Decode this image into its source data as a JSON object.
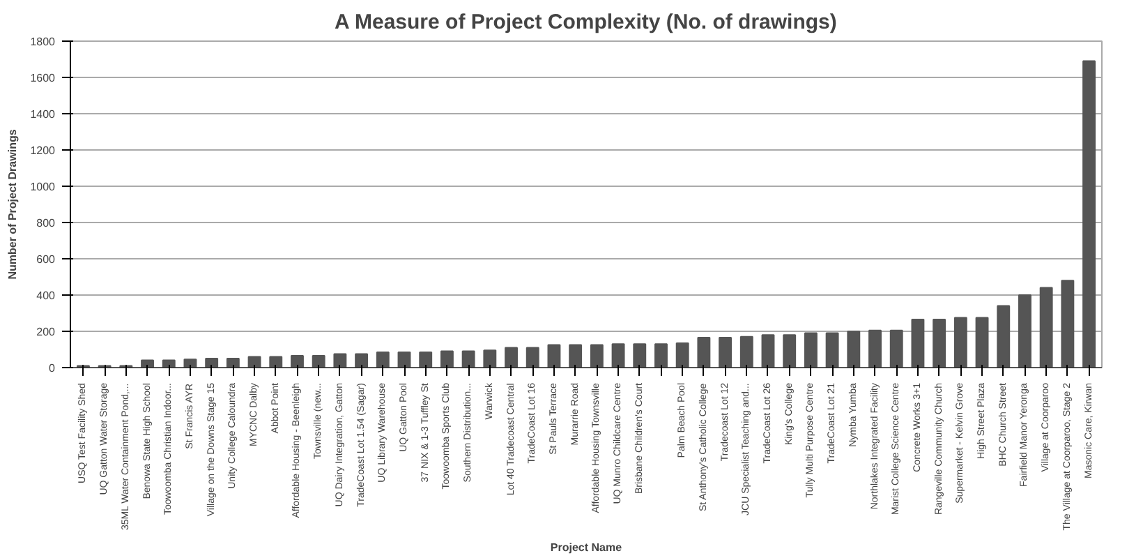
{
  "chart_data": {
    "type": "bar",
    "title": "A Measure of Project Complexity (No. of drawings)",
    "xlabel": "Project Name",
    "ylabel": "Number of Project Drawings",
    "categories": [
      "USQ Test Facility Shed",
      "UQ Gatton Water Storage",
      "35ML Water Containment Pond,...",
      "Benowa State High School",
      "Toowoomba Christian Indoor...",
      "St Francis AYR",
      "Village on the Downs Stage 15",
      "Unity College Caloundra",
      "MYCNC Dalby",
      "Abbot Point",
      "Affordable Housing - Beenleigh",
      "Townsville (new...",
      "UQ Dairy Integration, Gatton",
      "TradeCoast Lot 1.54 (Sagar)",
      "UQ Library Warehouse",
      "UQ Gatton Pool",
      "37 NIX & 1-3 Tuffley St",
      "Toowoomba Sports Club",
      "Southern Distribution...",
      "Warwick",
      "Lot 40 Tradecoast Central",
      "TradeCoast Lot 16",
      "St Pauls Terrace",
      "Murarrie Road",
      "Affordable Housing Townsville",
      "UQ Munro Childcare Centre",
      "Brisbane Children's Court",
      null,
      "Palm Beach Pool",
      "St Anthony's Catholic College",
      "Tradecoast Lot 12",
      "JCU Specialist Teaching and...",
      "TradeCoast Lot 26",
      "King's College",
      "Tully Multi Purpose Centre",
      "TradeCoast Lot 21",
      "Nymba Yumba",
      "Northlakes Integrated Facility",
      "Marist College Science Centre",
      "Concrete Works 3+1",
      "Rangeville Community Church",
      "Supermarket - Kelvin Grove",
      "High Street Plaza",
      "BHC Church Street",
      "Fairfield Manor Yeronga",
      "Village at Coorparoo",
      "The Village at Coorparoo, Stage 2",
      "Masonic Care, Kirwan"
    ],
    "values": [
      10,
      10,
      10,
      40,
      40,
      45,
      50,
      50,
      60,
      60,
      65,
      65,
      75,
      75,
      85,
      85,
      85,
      90,
      90,
      95,
      110,
      110,
      125,
      125,
      125,
      130,
      130,
      130,
      135,
      165,
      165,
      170,
      180,
      180,
      190,
      190,
      200,
      205,
      205,
      265,
      265,
      275,
      275,
      340,
      400,
      440,
      480,
      1690
    ],
    "color": "#555555",
    "ylim": [
      0,
      1800
    ],
    "yticks": [
      0,
      200,
      400,
      600,
      800,
      1000,
      1200,
      1400,
      1600,
      1800
    ],
    "grid": "y"
  }
}
